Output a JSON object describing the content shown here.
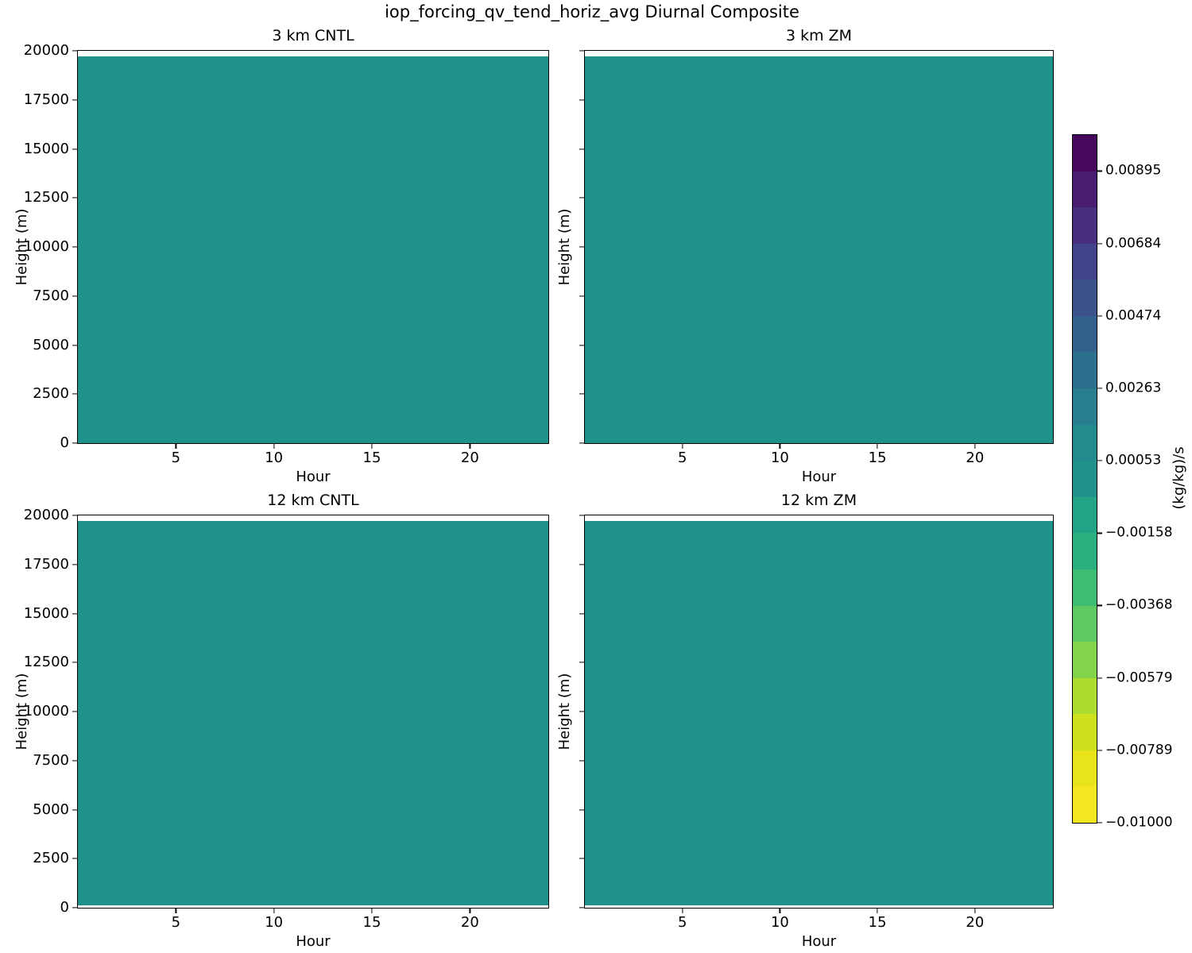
{
  "figure": {
    "title": "iop_forcing_qv_tend_horiz_avg Diurnal Composite"
  },
  "subplots": [
    {
      "title": "3 km CNTL",
      "xlabel": "Hour",
      "ylabel": "Height (m)",
      "show_ytick_labels": true
    },
    {
      "title": "3 km ZM",
      "xlabel": "Hour",
      "ylabel": "Height (m)",
      "show_ytick_labels": false
    },
    {
      "title": "12 km CNTL",
      "xlabel": "Hour",
      "ylabel": "Height (m)",
      "show_ytick_labels": true
    },
    {
      "title": "12 km ZM",
      "xlabel": "Hour",
      "ylabel": "Height (m)",
      "show_ytick_labels": false
    }
  ],
  "axes": {
    "xticks": [
      5,
      10,
      15,
      20
    ],
    "xlim": [
      0,
      24
    ],
    "yticks": [
      0,
      2500,
      5000,
      7500,
      10000,
      12500,
      15000,
      17500,
      20000
    ],
    "ylim": [
      0,
      20000
    ]
  },
  "fill_color": "#21918c",
  "colorbar": {
    "label": "(kg/kg)/s",
    "vmin": -0.01,
    "vmax": 0.01,
    "ticks": [
      {
        "value": 0.00895,
        "label": "0.00895"
      },
      {
        "value": 0.00684,
        "label": "0.00684"
      },
      {
        "value": 0.00474,
        "label": "0.00474"
      },
      {
        "value": 0.00263,
        "label": "0.00263"
      },
      {
        "value": 0.00053,
        "label": "0.00053"
      },
      {
        "value": -0.00158,
        "label": "−0.00158"
      },
      {
        "value": -0.00368,
        "label": "−0.00368"
      },
      {
        "value": -0.00579,
        "label": "−0.00579"
      },
      {
        "value": -0.00789,
        "label": "−0.00789"
      },
      {
        "value": -0.01,
        "label": "−0.01000"
      }
    ],
    "bands_top_to_bottom": [
      "#46085c",
      "#481d6f",
      "#472f7d",
      "#414287",
      "#3b528b",
      "#33618d",
      "#2d708e",
      "#287d8e",
      "#238a8d",
      "#21918c",
      "#22a385",
      "#2ab07f",
      "#3dbc74",
      "#5ec962",
      "#84d44b",
      "#addc30",
      "#cde11d",
      "#e8e419",
      "#f4e61f"
    ]
  },
  "chart_data": {
    "type": "heatmap",
    "title": "iop_forcing_qv_tend_horiz_avg Diurnal Composite",
    "xlabel": "Hour",
    "ylabel": "Height (m)",
    "xticks": [
      5,
      10,
      15,
      20
    ],
    "xlim": [
      0,
      24
    ],
    "yticks": [
      0,
      2500,
      5000,
      7500,
      10000,
      12500,
      15000,
      17500,
      20000
    ],
    "ylim": [
      0,
      20000
    ],
    "grid": false,
    "legend_position": "right vertical colorbar",
    "panels": [
      {
        "title": "3 km CNTL",
        "x_range_hours": [
          0,
          24
        ],
        "data_top_m": 19700,
        "field": "uniform value ≈ 0 (kg/kg)/s, single filled-contour band −0.00053 to 0.00053"
      },
      {
        "title": "3 km ZM",
        "x_range_hours": [
          0,
          24
        ],
        "data_top_m": 19700,
        "field": "uniform value ≈ 0 (kg/kg)/s, single filled-contour band −0.00053 to 0.00053"
      },
      {
        "title": "12 km CNTL",
        "x_range_hours": [
          0,
          24
        ],
        "data_top_m": 19700,
        "field": "uniform value ≈ 0 (kg/kg)/s, single filled-contour band −0.00053 to 0.00053"
      },
      {
        "title": "12 km ZM",
        "x_range_hours": [
          0,
          24
        ],
        "data_top_m": 19700,
        "field": "uniform value ≈ 0 (kg/kg)/s, single filled-contour band −0.00053 to 0.00053"
      }
    ],
    "colorbar": {
      "label": "(kg/kg)/s",
      "vmin": -0.01,
      "vmax": 0.01,
      "n_bands": 19,
      "tick_values": [
        0.00895,
        0.00684,
        0.00474,
        0.00263,
        0.00053,
        -0.00158,
        -0.00368,
        -0.00579,
        -0.00789,
        -0.01
      ],
      "colormap": "viridis reversed (yellow at −0.01 bottom → dark purple at 0.01 top)"
    },
    "fill_color_hex": "#21918c"
  }
}
